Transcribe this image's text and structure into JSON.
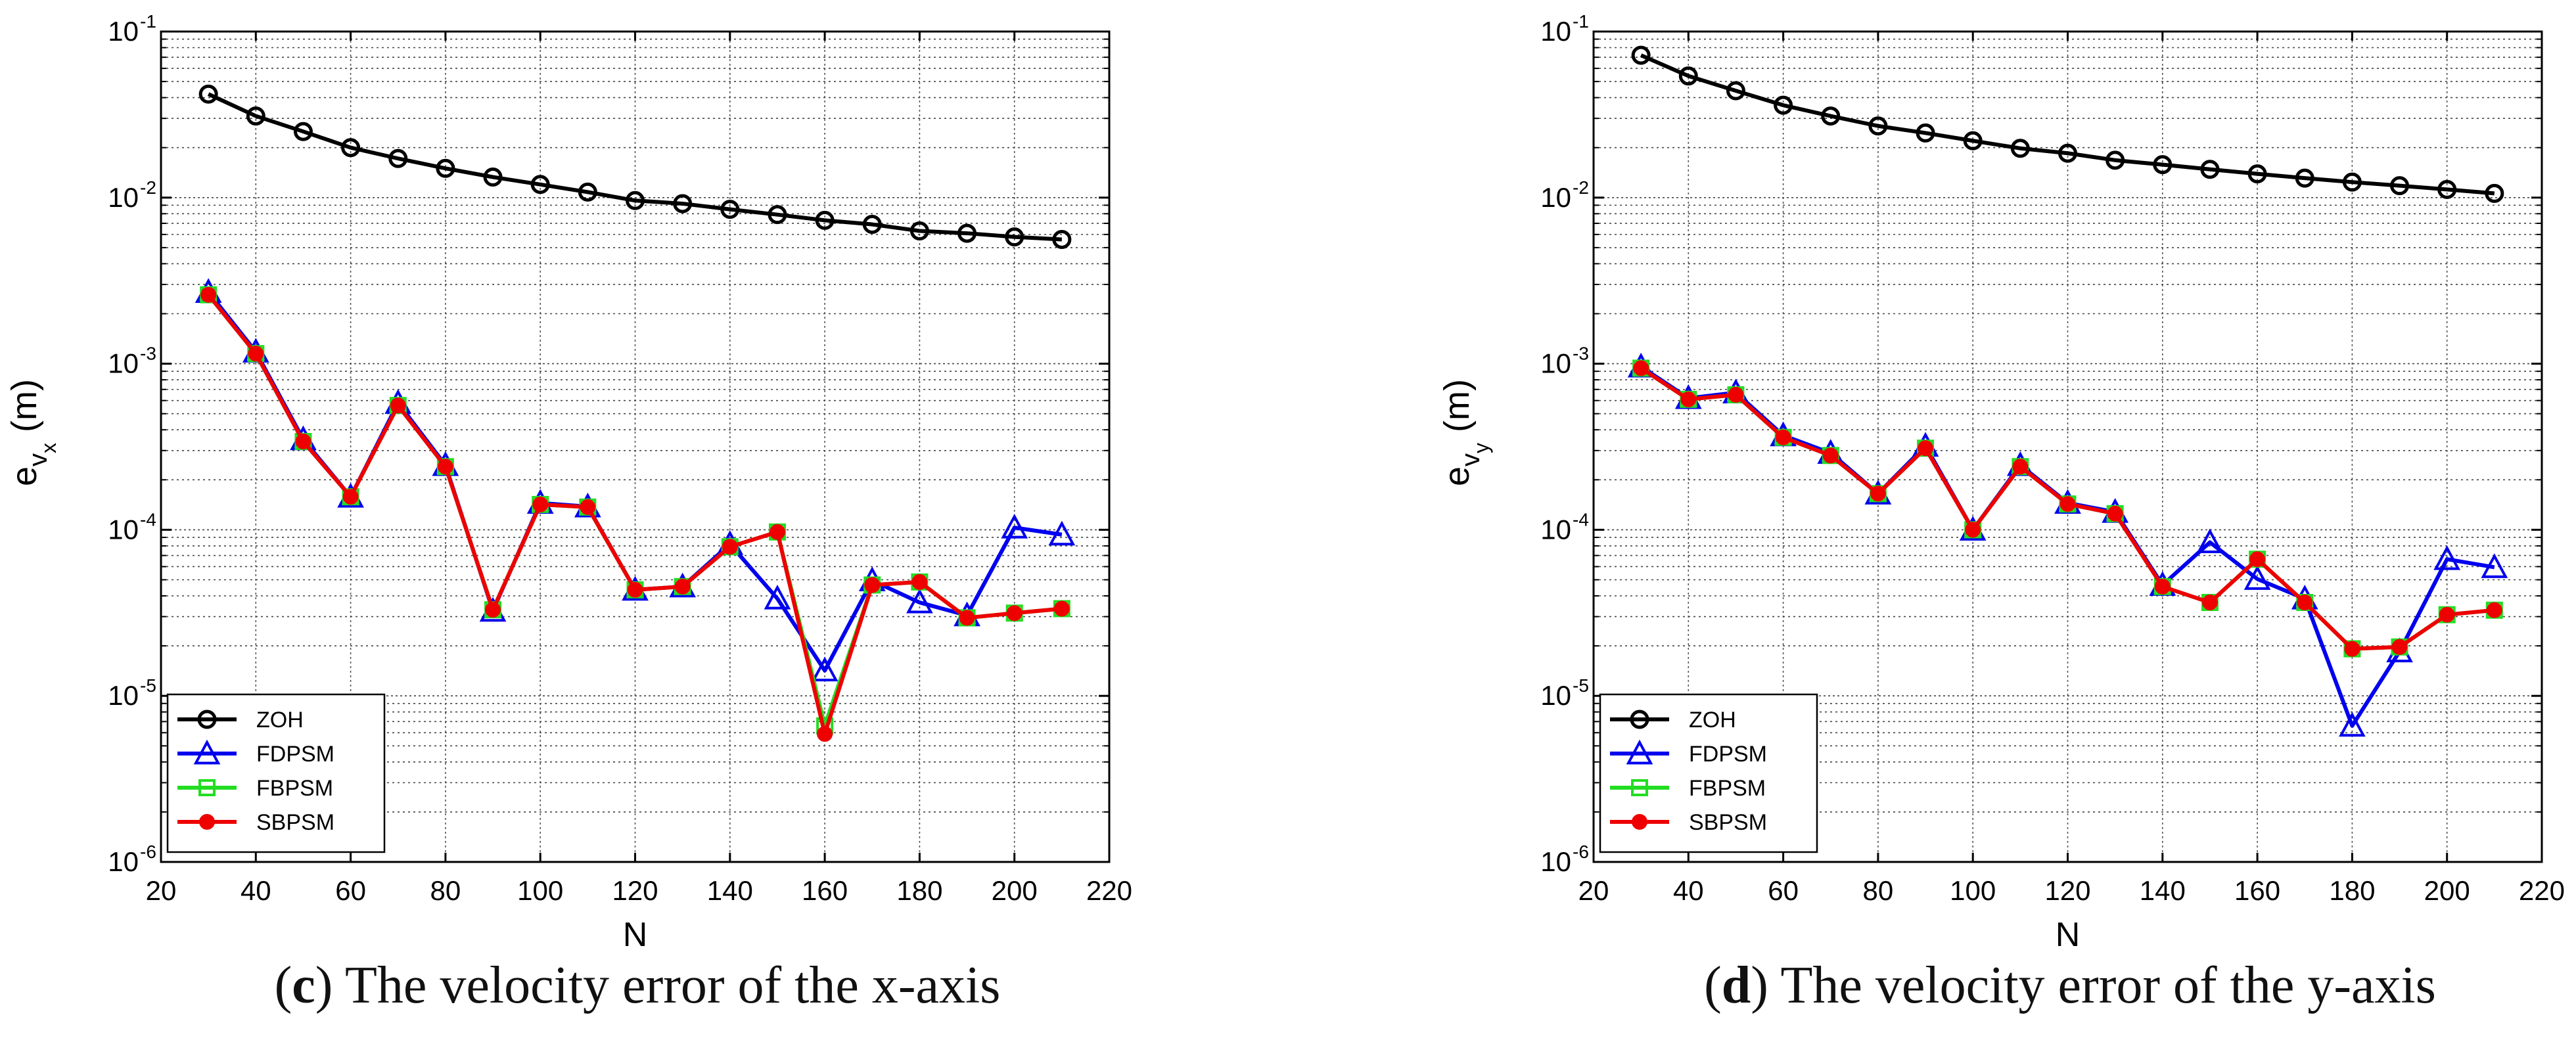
{
  "chart_data": [
    {
      "type": "line",
      "yscale": "log",
      "xlabel": "N",
      "ylabel": "e",
      "ylabel_sub": "v",
      "ylabel_subsub": "x",
      "ylabel_unit": "(m)",
      "xlim": [
        20,
        220
      ],
      "ylim": [
        1e-06,
        0.1
      ],
      "x_ticks": [
        20,
        40,
        60,
        80,
        100,
        120,
        140,
        160,
        180,
        200,
        220
      ],
      "y_ticks": [
        {
          "base": "10",
          "exp": "-6"
        },
        {
          "base": "10",
          "exp": "-5"
        },
        {
          "base": "10",
          "exp": "-4"
        },
        {
          "base": "10",
          "exp": "-3"
        },
        {
          "base": "10",
          "exp": "-2"
        },
        {
          "base": "10",
          "exp": "-1"
        }
      ],
      "legend": [
        "ZOH",
        "FDPSM",
        "FBPSM",
        "SBPSM"
      ],
      "legend_position": "bottom-left",
      "caption_letter": "c",
      "caption_text": "The velocity error of the x-axis",
      "x": [
        30,
        40,
        50,
        60,
        70,
        80,
        90,
        100,
        110,
        120,
        130,
        140,
        150,
        160,
        170,
        180,
        190,
        200,
        210
      ],
      "series": [
        {
          "name": "ZOH",
          "color": "#000000",
          "marker": "circle",
          "values": [
            0.042,
            0.031,
            0.025,
            0.02,
            0.0172,
            0.015,
            0.0133,
            0.012,
            0.0108,
            0.0096,
            0.0092,
            0.0085,
            0.0079,
            0.0073,
            0.0069,
            0.0063,
            0.0061,
            0.0058,
            0.0056
          ]
        },
        {
          "name": "FDPSM",
          "color": "#0000ee",
          "marker": "triangle",
          "values": [
            0.0027,
            0.00118,
            0.00035,
            0.000158,
            0.00058,
            0.000245,
            3.25e-05,
            0.000145,
            0.000138,
            4.35e-05,
            4.55e-05,
            8.2e-05,
            3.85e-05,
            1.42e-05,
            4.95e-05,
            3.65e-05,
            3.05e-05,
            0.000103,
            9.35e-05
          ]
        },
        {
          "name": "FBPSM",
          "color": "#22dd22",
          "marker": "square",
          "values": [
            0.0026,
            0.00115,
            0.00034,
            0.000158,
            0.00056,
            0.00024,
            3.3e-05,
            0.000142,
            0.000137,
            4.35e-05,
            4.55e-05,
            7.9e-05,
            9.7e-05,
            6.6e-06,
            4.65e-05,
            4.85e-05,
            2.95e-05,
            3.15e-05,
            3.35e-05
          ]
        },
        {
          "name": "SBPSM",
          "color": "#ee0000",
          "marker": "dot",
          "values": [
            0.0026,
            0.00115,
            0.00034,
            0.000158,
            0.00056,
            0.00024,
            3.3e-05,
            0.000142,
            0.000137,
            4.35e-05,
            4.55e-05,
            7.9e-05,
            9.7e-05,
            5.9e-06,
            4.65e-05,
            4.85e-05,
            2.95e-05,
            3.15e-05,
            3.35e-05
          ]
        }
      ]
    },
    {
      "type": "line",
      "yscale": "log",
      "xlabel": "N",
      "ylabel": "e",
      "ylabel_sub": "v",
      "ylabel_subsub": "y",
      "ylabel_unit": "(m)",
      "xlim": [
        20,
        220
      ],
      "ylim": [
        1e-06,
        0.1
      ],
      "x_ticks": [
        20,
        40,
        60,
        80,
        100,
        120,
        140,
        160,
        180,
        200,
        220
      ],
      "y_ticks": [
        {
          "base": "10",
          "exp": "-6"
        },
        {
          "base": "10",
          "exp": "-5"
        },
        {
          "base": "10",
          "exp": "-4"
        },
        {
          "base": "10",
          "exp": "-3"
        },
        {
          "base": "10",
          "exp": "-2"
        },
        {
          "base": "10",
          "exp": "-1"
        }
      ],
      "legend": [
        "ZOH",
        "FDPSM",
        "FBPSM",
        "SBPSM"
      ],
      "legend_position": "bottom-left",
      "caption_letter": "d",
      "caption_text": "The velocity error of the y-axis",
      "x": [
        30,
        40,
        50,
        60,
        70,
        80,
        90,
        100,
        110,
        120,
        130,
        140,
        150,
        160,
        170,
        180,
        190,
        200,
        210
      ],
      "series": [
        {
          "name": "ZOH",
          "color": "#000000",
          "marker": "circle",
          "values": [
            0.072,
            0.054,
            0.044,
            0.036,
            0.031,
            0.027,
            0.0245,
            0.022,
            0.0198,
            0.0185,
            0.0168,
            0.0158,
            0.0148,
            0.0139,
            0.0131,
            0.0124,
            0.0118,
            0.0112,
            0.0106
          ]
        },
        {
          "name": "FDPSM",
          "color": "#0000ee",
          "marker": "triangle",
          "values": [
            0.00096,
            0.00062,
            0.00067,
            0.00037,
            0.00029,
            0.000165,
            0.00032,
            0.0001,
            0.000245,
            0.000145,
            0.000128,
            4.65e-05,
            8.4e-05,
            5.05e-05,
            3.85e-05,
            6.6e-06,
            1.85e-05,
            6.65e-05,
            5.95e-05
          ]
        },
        {
          "name": "FBPSM",
          "color": "#22dd22",
          "marker": "square",
          "values": [
            0.00094,
            0.00061,
            0.00065,
            0.00036,
            0.00028,
            0.000165,
            0.00031,
            0.0001,
            0.00024,
            0.000143,
            0.000125,
            4.55e-05,
            3.65e-05,
            6.65e-05,
            3.65e-05,
            1.92e-05,
            1.97e-05,
            3.08e-05,
            3.28e-05
          ]
        },
        {
          "name": "SBPSM",
          "color": "#ee0000",
          "marker": "dot",
          "values": [
            0.00094,
            0.00061,
            0.00065,
            0.00036,
            0.00028,
            0.000165,
            0.00031,
            0.0001,
            0.00024,
            0.000143,
            0.000125,
            4.55e-05,
            3.65e-05,
            6.65e-05,
            3.65e-05,
            1.92e-05,
            1.97e-05,
            3.08e-05,
            3.28e-05
          ]
        }
      ]
    }
  ]
}
